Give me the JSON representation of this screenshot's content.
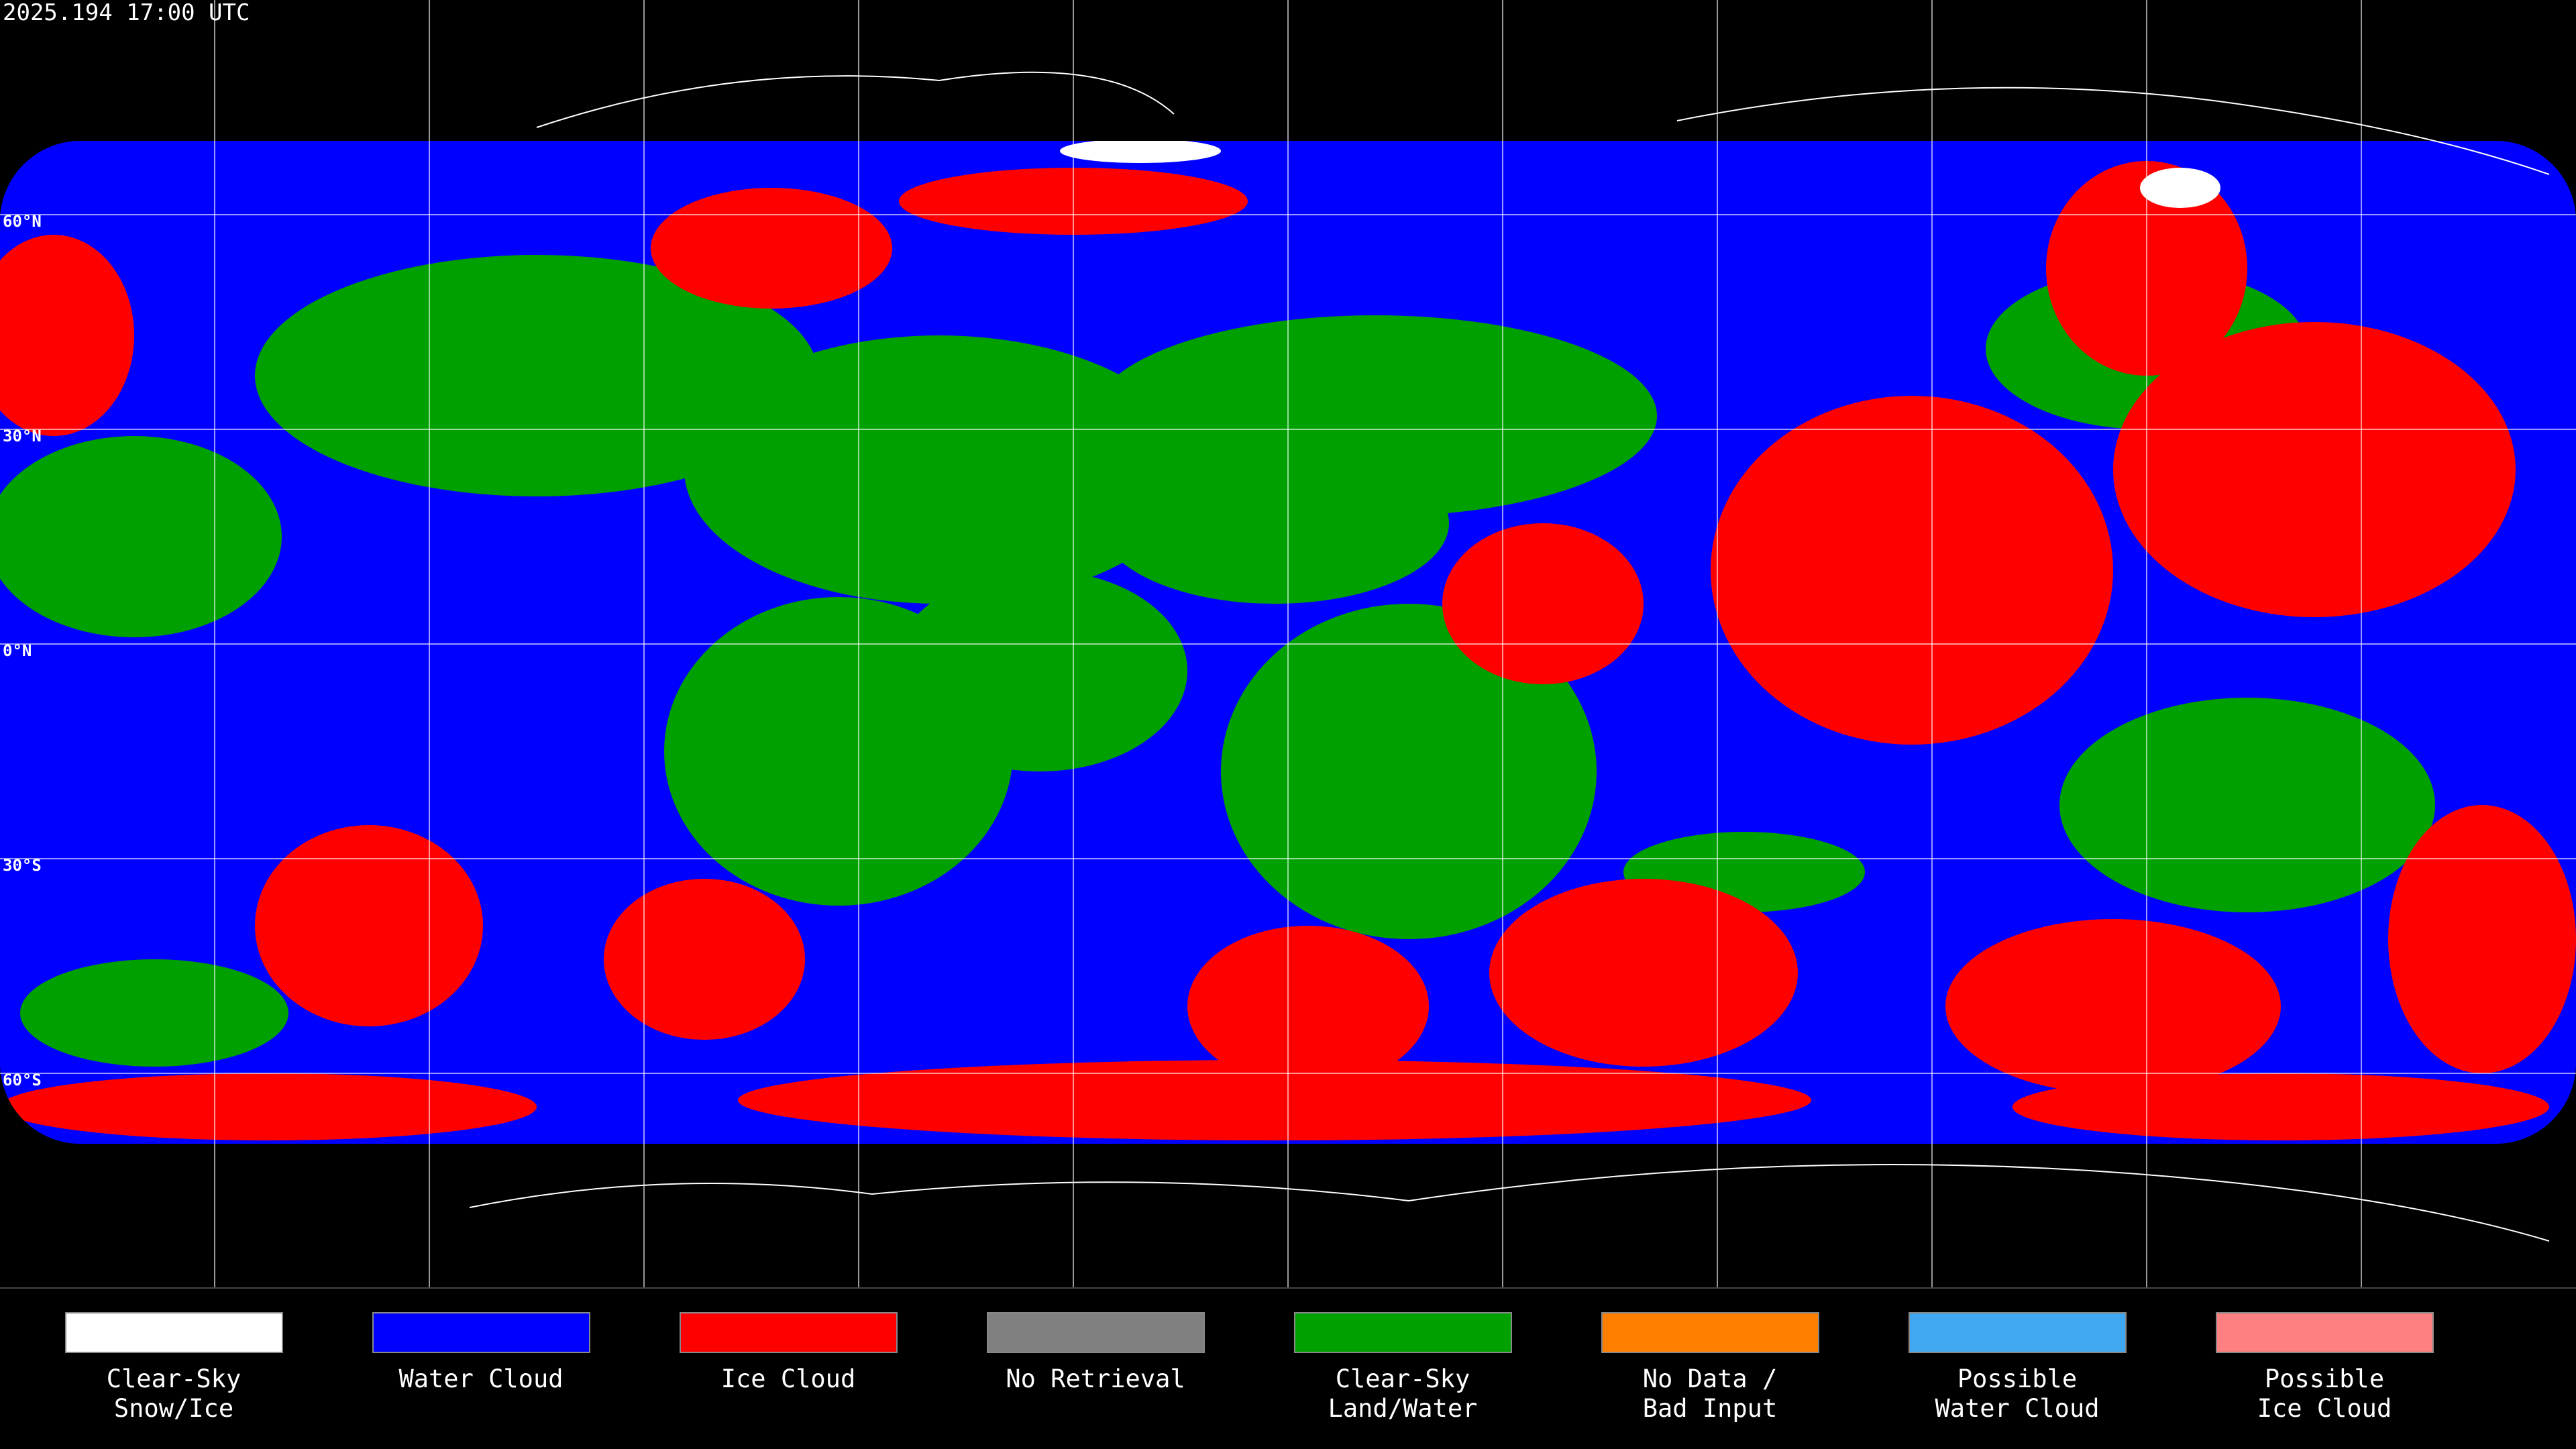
{
  "header": {
    "title": "2025.194 17:00 UTC"
  },
  "latitude_labels": [
    "60°N",
    "30°N",
    "0°N",
    "30°S",
    "60°S"
  ],
  "legend": [
    {
      "lines": [
        "Clear-Sky",
        "Snow/Ice"
      ],
      "color": "#ffffff"
    },
    {
      "lines": [
        "Water Cloud"
      ],
      "color": "#0000ff"
    },
    {
      "lines": [
        "Ice Cloud"
      ],
      "color": "#ff0000"
    },
    {
      "lines": [
        "No Retrieval"
      ],
      "color": "#808080"
    },
    {
      "lines": [
        "Clear-Sky",
        "Land/Water"
      ],
      "color": "#00a000"
    },
    {
      "lines": [
        "No Data /",
        "Bad Input"
      ],
      "color": "#ff8000"
    },
    {
      "lines": [
        "Possible",
        "Water Cloud"
      ],
      "color": "#40a8f0"
    },
    {
      "lines": [
        "Possible",
        "Ice Cloud"
      ],
      "color": "#ff8080"
    }
  ]
}
